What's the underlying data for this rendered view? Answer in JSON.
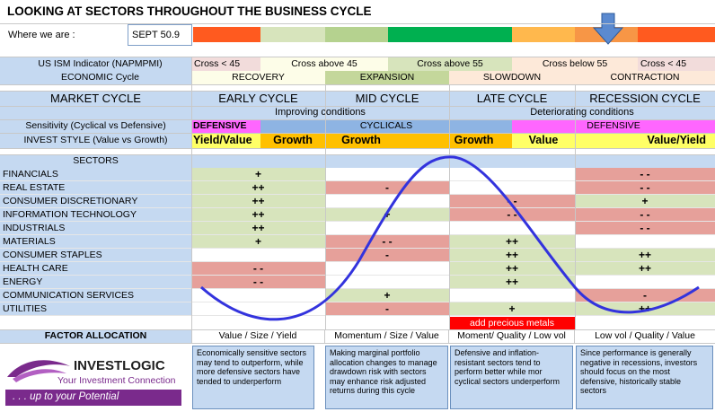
{
  "title": "LOOKING AT SECTORS THROUGHOUT THE BUSINESS CYCLE",
  "where_label": "Where we are :",
  "where_value": "SEPT 50.9",
  "colors": {
    "ism_row": "#f2dcdb",
    "header_blue": "#c5d9f1",
    "green_light": "#d7e4bc",
    "green_mid": "#c4d79b",
    "green_bright": "#00b050",
    "orange": "#f79646",
    "orange_light": "#fac090",
    "red_bright": "#e46c0a",
    "red_cell": "#e6a09a",
    "magenta": "#ff66ff",
    "orange_style": "#ffc000",
    "yellow_style": "#ffff66",
    "pink_light": "#fde9d9",
    "curve": "#3333dd",
    "arrow": "#4f81bd"
  },
  "ism": {
    "label": "US ISM Indicator (NAPMPMI)",
    "cells": [
      "Cross < 45",
      "Cross above 45",
      "Cross above 55",
      "Cross below 55",
      "Cross < 45"
    ]
  },
  "economic": {
    "label": "ECONOMIC Cycle",
    "cells": [
      "RECOVERY",
      "EXPANSION",
      "SLOWDOWN",
      "CONTRACTION"
    ]
  },
  "market": {
    "label": "MARKET CYCLE",
    "cells": [
      "EARLY CYCLE",
      "MID CYCLE",
      "LATE CYCLE",
      "RECESSION CYCLE"
    ]
  },
  "conditions": {
    "improving": "Improving conditions",
    "deteriorating": "Deteriorating conditions"
  },
  "sensitivity": {
    "label": "Sensitivity (Cyclical vs Defensive)",
    "defensive_1": "DEFENSIVE",
    "cyclicals": "CYCLICALS",
    "defensive_2": "DEFENSIVE"
  },
  "invest_style": {
    "label": "INVEST STYLE (Value vs Growth)",
    "cells": [
      "Yield/Value",
      "Growth",
      "Growth",
      "Growth",
      "Value",
      "Value/Yield"
    ]
  },
  "sectors_header": "SECTORS",
  "sectors": [
    {
      "name": "FINANCIALS",
      "early": "+",
      "mid": "",
      "late": "",
      "rec": "- -"
    },
    {
      "name": "REAL ESTATE",
      "early": "++",
      "mid": "-",
      "late": "",
      "rec": "- -"
    },
    {
      "name": "CONSUMER DISCRETIONARY",
      "early": "++",
      "mid": "",
      "late": "- -",
      "rec": "+"
    },
    {
      "name": "INFORMATION TECHNOLOGY",
      "early": "++",
      "mid": "+",
      "late": "- -",
      "rec": "- -"
    },
    {
      "name": "INDUSTRIALS",
      "early": "++",
      "mid": "",
      "late": "",
      "rec": "- -"
    },
    {
      "name": "MATERIALS",
      "early": "+",
      "mid": "- -",
      "late": "++",
      "rec": ""
    },
    {
      "name": "CONSUMER STAPLES",
      "early": "",
      "mid": "-",
      "late": "++",
      "rec": "++"
    },
    {
      "name": "HEALTH CARE",
      "early": "- -",
      "mid": "",
      "late": "++",
      "rec": "++"
    },
    {
      "name": "ENERGY",
      "early": "- -",
      "mid": "",
      "late": "++",
      "rec": ""
    },
    {
      "name": "COMMUNICATION SERVICES",
      "early": "",
      "mid": "+",
      "late": "",
      "rec": "-"
    },
    {
      "name": "UTILITIES",
      "early": "",
      "mid": "-",
      "late": "+",
      "rec": "++"
    }
  ],
  "precious_note": "add precious metals",
  "factor": {
    "label": "FACTOR ALLOCATION",
    "cells": [
      "Value / Size / Yield",
      "Momentum / Size / Value",
      "Moment/ Quality / Low vol",
      "Low vol / Quality / Value"
    ]
  },
  "descriptions": [
    "Economically sensitive sectors may tend to outperform, while more defensive sectors have tended to underperform",
    "Making marginal portfolio allocation changes to manage drawdown risk with sectors may enhance risk adjusted returns during this cycle",
    "Defensive and inflation-resistant sectors tend to perform better while mor cyclical sectors underperform",
    "Since performance is generally negative in recessions, investors should focus on the most defensive, historically stable sectors"
  ],
  "logo": {
    "name": "INVESTLOGIC",
    "tagline": "Your Investment Connection",
    "slogan": ". . . up to your Potential"
  }
}
